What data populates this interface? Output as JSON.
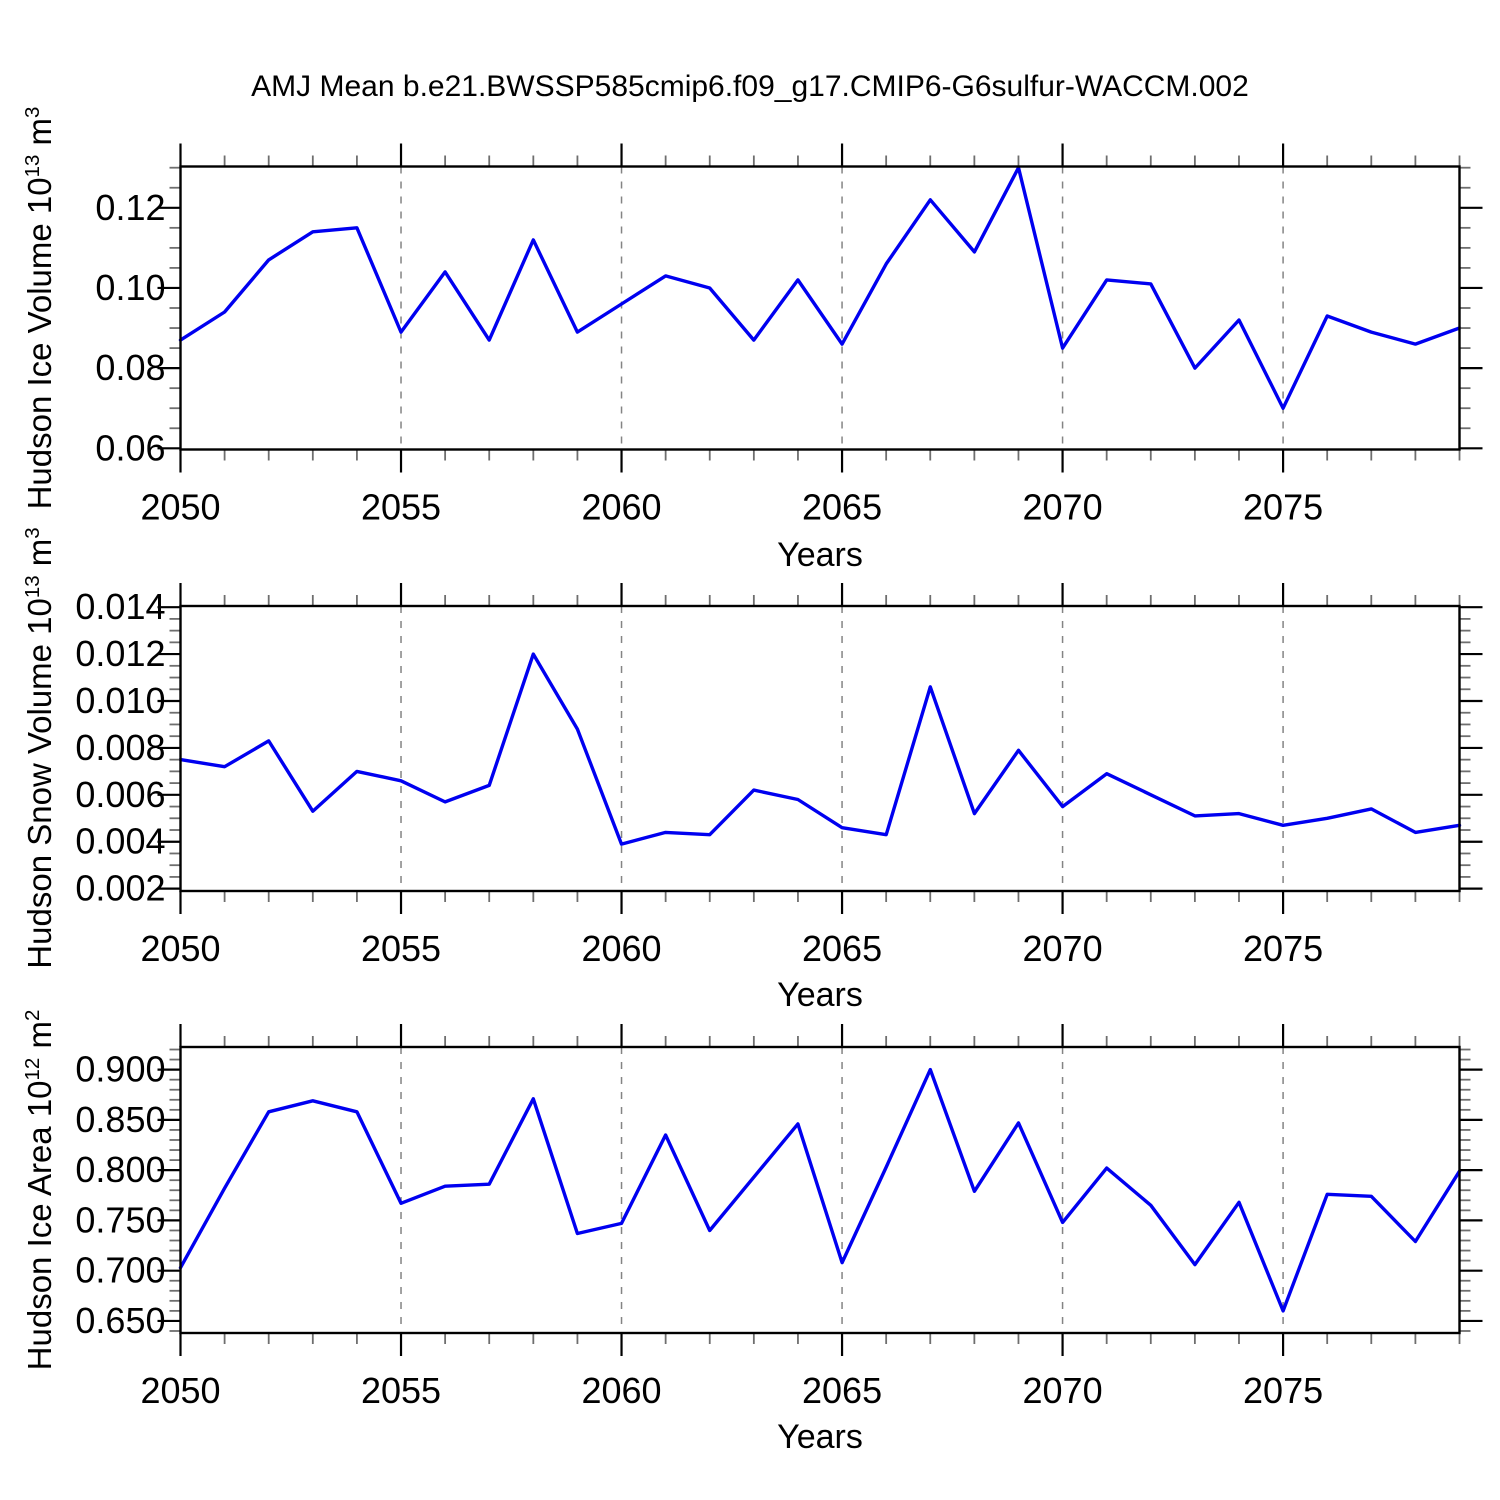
{
  "title": "AMJ Mean b.e21.BWSSP585cmip6.f09_g17.CMIP6-G6sulfur-WACCM.002",
  "colors": {
    "line": "#0000F0",
    "grid": "#848484",
    "frame": "#000000",
    "minor_tick": "#6e6e6e",
    "text": "#000000",
    "background": "#ffffff"
  },
  "chart_data": [
    {
      "type": "line",
      "ylabel": "Hudson Ice Volume 10^13 m^3",
      "ylabel_parts": {
        "base": "Hudson Ice Volume 10",
        "exp": "13",
        "unit_base": " m",
        "unit_exp": "3"
      },
      "xlabel": "Years",
      "x": [
        2050,
        2051,
        2052,
        2053,
        2054,
        2055,
        2056,
        2057,
        2058,
        2059,
        2060,
        2061,
        2062,
        2063,
        2064,
        2065,
        2066,
        2067,
        2068,
        2069,
        2070,
        2071,
        2072,
        2073,
        2074,
        2075,
        2076,
        2077,
        2078,
        2079
      ],
      "series": [
        {
          "name": "Hudson Ice Volume",
          "values": [
            0.087,
            0.094,
            0.107,
            0.114,
            0.115,
            0.089,
            0.104,
            0.087,
            0.112,
            0.089,
            0.096,
            0.103,
            0.1,
            0.087,
            0.102,
            0.086,
            0.106,
            0.122,
            0.109,
            0.13,
            0.085,
            0.102,
            0.101,
            0.08,
            0.092,
            0.07,
            0.093,
            0.089,
            0.086,
            0.09
          ]
        }
      ],
      "xlim": [
        2050,
        2079
      ],
      "ylim": [
        0.0597,
        0.1303
      ],
      "yticks_major": [
        0.06,
        0.08,
        0.1,
        0.12
      ],
      "ytick_labels": [
        "0.06",
        "0.08",
        "0.10",
        "0.12"
      ],
      "ytick_minor_step": 0.005,
      "xticks_major": [
        2050,
        2055,
        2060,
        2065,
        2070,
        2075
      ],
      "xtick_labels": [
        "2050",
        "2055",
        "2060",
        "2065",
        "2070",
        "2075"
      ],
      "xtick_minor_step": 1,
      "grid_x": [
        2055,
        2060,
        2065,
        2070,
        2075
      ],
      "legend": "none",
      "grid": "vertical-dashed"
    },
    {
      "type": "line",
      "ylabel": "Hudson Snow Volume 10^13 m^3",
      "ylabel_parts": {
        "base": "Hudson Snow Volume 10",
        "exp": "13",
        "unit_base": " m",
        "unit_exp": "3"
      },
      "xlabel": "Years",
      "x": [
        2050,
        2051,
        2052,
        2053,
        2054,
        2055,
        2056,
        2057,
        2058,
        2059,
        2060,
        2061,
        2062,
        2063,
        2064,
        2065,
        2066,
        2067,
        2068,
        2069,
        2070,
        2071,
        2072,
        2073,
        2074,
        2075,
        2076,
        2077,
        2078,
        2079
      ],
      "series": [
        {
          "name": "Hudson Snow Volume",
          "values": [
            0.0075,
            0.0072,
            0.0083,
            0.0053,
            0.007,
            0.0066,
            0.0057,
            0.0064,
            0.012,
            0.0088,
            0.0039,
            0.0044,
            0.0043,
            0.0062,
            0.0058,
            0.0046,
            0.0043,
            0.0106,
            0.0052,
            0.0079,
            0.0055,
            0.0069,
            0.006,
            0.0051,
            0.0052,
            0.0047,
            0.005,
            0.0054,
            0.0044,
            0.0047
          ]
        }
      ],
      "xlim": [
        2050,
        2079
      ],
      "ylim": [
        0.0019,
        0.01405
      ],
      "yticks_major": [
        0.002,
        0.004,
        0.006,
        0.008,
        0.01,
        0.012,
        0.014
      ],
      "ytick_labels": [
        "0.002",
        "0.004",
        "0.006",
        "0.008",
        "0.010",
        "0.012",
        "0.014"
      ],
      "ytick_minor_step": 0.0005,
      "xticks_major": [
        2050,
        2055,
        2060,
        2065,
        2070,
        2075
      ],
      "xtick_labels": [
        "2050",
        "2055",
        "2060",
        "2065",
        "2070",
        "2075"
      ],
      "xtick_minor_step": 1,
      "grid_x": [
        2055,
        2060,
        2065,
        2070,
        2075
      ],
      "legend": "none",
      "grid": "vertical-dashed"
    },
    {
      "type": "line",
      "ylabel": "Hudson Ice Area 10^12 m^2",
      "ylabel_parts": {
        "base": "Hudson Ice Area 10",
        "exp": "12",
        "unit_base": " m",
        "unit_exp": "2"
      },
      "xlabel": "Years",
      "x": [
        2050,
        2051,
        2052,
        2053,
        2054,
        2055,
        2056,
        2057,
        2058,
        2059,
        2060,
        2061,
        2062,
        2063,
        2064,
        2065,
        2066,
        2067,
        2068,
        2069,
        2070,
        2071,
        2072,
        2073,
        2074,
        2075,
        2076,
        2077,
        2078,
        2079
      ],
      "series": [
        {
          "name": "Hudson Ice Area",
          "values": [
            0.703,
            0.782,
            0.858,
            0.869,
            0.858,
            0.767,
            0.784,
            0.786,
            0.871,
            0.737,
            0.747,
            0.835,
            0.74,
            0.793,
            0.846,
            0.708,
            0.803,
            0.9,
            0.779,
            0.847,
            0.748,
            0.802,
            0.765,
            0.706,
            0.768,
            0.66,
            0.776,
            0.774,
            0.729,
            0.799
          ]
        }
      ],
      "xlim": [
        2050,
        2079
      ],
      "ylim": [
        0.638,
        0.9225
      ],
      "yticks_major": [
        0.65,
        0.7,
        0.75,
        0.8,
        0.85,
        0.9
      ],
      "ytick_labels": [
        "0.650",
        "0.700",
        "0.750",
        "0.800",
        "0.850",
        "0.900"
      ],
      "ytick_minor_step": 0.01,
      "xticks_major": [
        2050,
        2055,
        2060,
        2065,
        2070,
        2075
      ],
      "xtick_labels": [
        "2050",
        "2055",
        "2060",
        "2065",
        "2070",
        "2075"
      ],
      "xtick_minor_step": 1,
      "grid_x": [
        2055,
        2060,
        2065,
        2070,
        2075
      ],
      "legend": "none",
      "grid": "vertical-dashed"
    }
  ]
}
